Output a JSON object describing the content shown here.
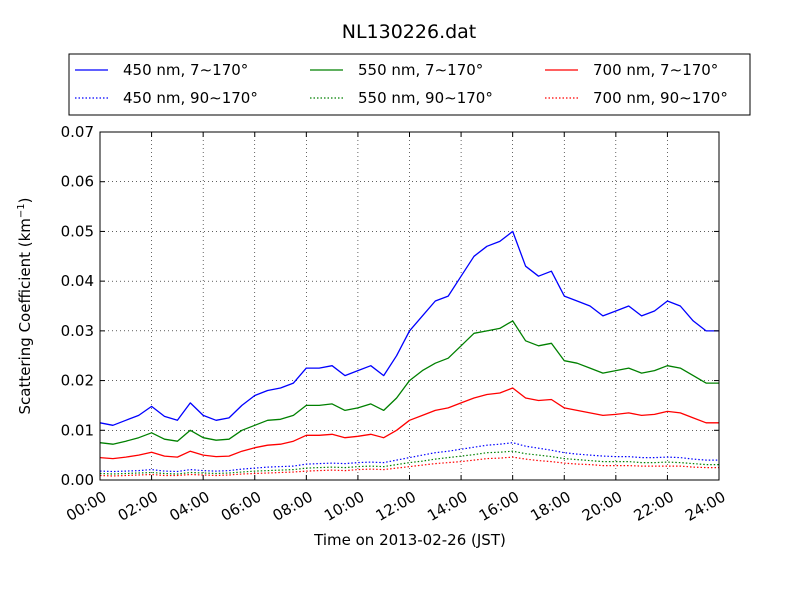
{
  "chart_data": {
    "type": "line",
    "title": "NL130226.dat",
    "xlabel": "Time on 2013-02-26 (JST)",
    "ylabel_main": "Scattering Coefficient (km",
    "ylabel_sup": "−1",
    "ylabel_close": ")",
    "x_unit": "hours",
    "xlim": [
      0,
      24
    ],
    "ylim": [
      0,
      0.07
    ],
    "x_ticks": [
      0,
      2,
      4,
      6,
      8,
      10,
      12,
      14,
      16,
      18,
      20,
      22,
      24
    ],
    "x_tick_labels": [
      "00:00",
      "02:00",
      "04:00",
      "06:00",
      "08:00",
      "10:00",
      "12:00",
      "14:00",
      "16:00",
      "18:00",
      "20:00",
      "22:00",
      "24:00"
    ],
    "y_ticks": [
      0,
      0.01,
      0.02,
      0.03,
      0.04,
      0.05,
      0.06,
      0.07
    ],
    "y_tick_labels": [
      "0.00",
      "0.01",
      "0.02",
      "0.03",
      "0.04",
      "0.05",
      "0.06",
      "0.07"
    ],
    "grid": true,
    "legend_position": "top",
    "x": [
      0,
      0.5,
      1,
      1.5,
      2,
      2.5,
      3,
      3.5,
      4,
      4.5,
      5,
      5.5,
      6,
      6.5,
      7,
      7.5,
      8,
      8.5,
      9,
      9.5,
      10,
      10.5,
      11,
      11.5,
      12,
      12.5,
      13,
      13.5,
      14,
      14.5,
      15,
      15.5,
      16,
      16.5,
      17,
      17.5,
      18,
      18.5,
      19,
      19.5,
      20,
      20.5,
      21,
      21.5,
      22,
      22.5,
      23,
      23.5,
      24
    ],
    "series": [
      {
        "name": "450 nm, 7∼170°",
        "color": "#0000ff",
        "style": "solid",
        "values": [
          0.0115,
          0.011,
          0.012,
          0.013,
          0.0148,
          0.0128,
          0.012,
          0.0155,
          0.013,
          0.012,
          0.0125,
          0.015,
          0.017,
          0.018,
          0.0185,
          0.0195,
          0.0225,
          0.0225,
          0.023,
          0.021,
          0.022,
          0.023,
          0.021,
          0.025,
          0.03,
          0.033,
          0.036,
          0.037,
          0.041,
          0.045,
          0.047,
          0.048,
          0.05,
          0.043,
          0.041,
          0.042,
          0.037,
          0.036,
          0.035,
          0.033,
          0.034,
          0.035,
          0.033,
          0.034,
          0.036,
          0.035,
          0.032,
          0.03,
          0.03
        ]
      },
      {
        "name": "550 nm, 7∼170°",
        "color": "#008000",
        "style": "solid",
        "values": [
          0.0075,
          0.0072,
          0.0078,
          0.0085,
          0.0095,
          0.0082,
          0.0078,
          0.01,
          0.0085,
          0.008,
          0.0082,
          0.01,
          0.011,
          0.012,
          0.0122,
          0.013,
          0.015,
          0.015,
          0.0153,
          0.014,
          0.0145,
          0.0153,
          0.014,
          0.0165,
          0.02,
          0.022,
          0.0235,
          0.0245,
          0.027,
          0.0295,
          0.03,
          0.0305,
          0.032,
          0.028,
          0.027,
          0.0275,
          0.024,
          0.0235,
          0.0225,
          0.0215,
          0.022,
          0.0225,
          0.0215,
          0.022,
          0.023,
          0.0225,
          0.021,
          0.0195,
          0.0195
        ]
      },
      {
        "name": "700 nm, 7∼170°",
        "color": "#ff0000",
        "style": "solid",
        "values": [
          0.0045,
          0.0043,
          0.0046,
          0.005,
          0.0056,
          0.0048,
          0.0046,
          0.0058,
          0.005,
          0.0047,
          0.0048,
          0.0058,
          0.0065,
          0.007,
          0.0072,
          0.0078,
          0.009,
          0.009,
          0.0092,
          0.0085,
          0.0088,
          0.0092,
          0.0085,
          0.01,
          0.012,
          0.013,
          0.014,
          0.0145,
          0.0155,
          0.0165,
          0.0172,
          0.0175,
          0.0185,
          0.0165,
          0.016,
          0.0162,
          0.0145,
          0.014,
          0.0135,
          0.013,
          0.0132,
          0.0135,
          0.013,
          0.0132,
          0.0138,
          0.0135,
          0.0125,
          0.0115,
          0.0115
        ]
      },
      {
        "name": "450 nm, 90∼170°",
        "color": "#0000ff",
        "style": "dotted",
        "values": [
          0.0018,
          0.0017,
          0.0018,
          0.0019,
          0.0021,
          0.0018,
          0.0017,
          0.0021,
          0.0019,
          0.0018,
          0.0019,
          0.0022,
          0.0024,
          0.0026,
          0.0027,
          0.0028,
          0.0032,
          0.0033,
          0.0034,
          0.0033,
          0.0035,
          0.0036,
          0.0035,
          0.004,
          0.0045,
          0.005,
          0.0055,
          0.0058,
          0.0062,
          0.0066,
          0.007,
          0.0072,
          0.0075,
          0.0068,
          0.0064,
          0.006,
          0.0055,
          0.0052,
          0.005,
          0.0048,
          0.0047,
          0.0047,
          0.0045,
          0.0045,
          0.0046,
          0.0045,
          0.0042,
          0.004,
          0.004
        ]
      },
      {
        "name": "550 nm, 90∼170°",
        "color": "#008000",
        "style": "dotted",
        "values": [
          0.0013,
          0.0012,
          0.0013,
          0.0014,
          0.0015,
          0.0013,
          0.0012,
          0.0015,
          0.0014,
          0.0013,
          0.0014,
          0.0016,
          0.0018,
          0.0019,
          0.002,
          0.0021,
          0.0024,
          0.0025,
          0.0026,
          0.0025,
          0.0027,
          0.0028,
          0.0027,
          0.0031,
          0.0035,
          0.0038,
          0.0042,
          0.0045,
          0.0048,
          0.0051,
          0.0055,
          0.0056,
          0.0058,
          0.0053,
          0.005,
          0.0047,
          0.0043,
          0.0041,
          0.0039,
          0.0037,
          0.0037,
          0.0037,
          0.0035,
          0.0035,
          0.0036,
          0.0035,
          0.0033,
          0.0031,
          0.0031
        ]
      },
      {
        "name": "700 nm, 90∼170°",
        "color": "#ff0000",
        "style": "dotted",
        "values": [
          0.0009,
          0.0008,
          0.0009,
          0.001,
          0.0011,
          0.0009,
          0.0009,
          0.0011,
          0.001,
          0.0009,
          0.001,
          0.0012,
          0.0013,
          0.0014,
          0.0015,
          0.0016,
          0.0018,
          0.0019,
          0.002,
          0.0019,
          0.0021,
          0.0022,
          0.0021,
          0.0024,
          0.0027,
          0.003,
          0.0033,
          0.0035,
          0.0037,
          0.004,
          0.0043,
          0.0044,
          0.0046,
          0.0042,
          0.0039,
          0.0037,
          0.0034,
          0.0032,
          0.0031,
          0.0029,
          0.0029,
          0.0029,
          0.0028,
          0.0028,
          0.0028,
          0.0028,
          0.0026,
          0.0025,
          0.0025
        ]
      }
    ]
  }
}
